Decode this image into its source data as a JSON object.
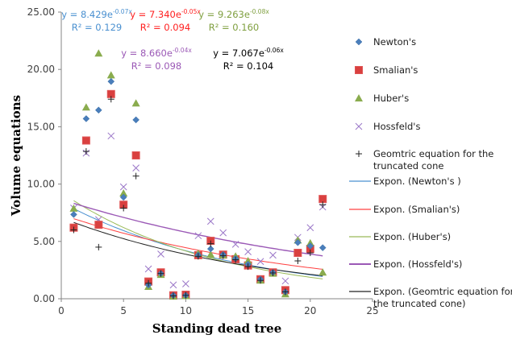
{
  "chart_data": {
    "type": "scatter",
    "title": "",
    "xlabel": "Standing dead tree",
    "ylabel": "Volume equations",
    "xlim": [
      0,
      25
    ],
    "ylim": [
      0,
      25
    ],
    "x_ticks": [
      "0",
      "5",
      "10",
      "15",
      "20",
      "25"
    ],
    "y_ticks": [
      "0.00",
      "5.00",
      "10.00",
      "15.00",
      "20.00",
      "25.00"
    ],
    "grid": false,
    "legend_position": "right",
    "x": [
      1,
      2,
      3,
      4,
      5,
      6,
      7,
      8,
      9,
      10,
      11,
      12,
      13,
      14,
      15,
      16,
      17,
      18,
      19,
      20,
      21
    ],
    "series": [
      {
        "name": "Newton's",
        "marker": "diamond",
        "color": "#4a7ebb",
        "values": [
          7.35,
          15.7,
          16.45,
          18.95,
          8.85,
          15.6,
          1.2,
          2.2,
          0.3,
          0.3,
          3.8,
          4.35,
          3.85,
          3.5,
          3.0,
          1.7,
          2.3,
          0.6,
          4.9,
          4.6,
          4.45
        ]
      },
      {
        "name": "Smalian's",
        "marker": "square",
        "color": "#d9403f",
        "values": [
          6.2,
          13.8,
          6.45,
          17.85,
          8.2,
          12.5,
          1.5,
          2.3,
          0.3,
          0.35,
          3.8,
          5.05,
          3.85,
          3.45,
          2.9,
          1.7,
          2.3,
          0.75,
          4.0,
          4.35,
          8.7
        ]
      },
      {
        "name": "Huber's",
        "marker": "triangle",
        "color": "#8aac4e",
        "values": [
          7.87,
          16.7,
          21.4,
          19.5,
          9.2,
          17.05,
          1.05,
          2.1,
          0.2,
          0.25,
          3.95,
          3.85,
          3.8,
          3.7,
          3.3,
          1.6,
          2.2,
          0.4,
          5.1,
          4.85,
          2.3
        ]
      },
      {
        "name": "Hossfeld's",
        "marker": "x",
        "color": "#9b77c8",
        "values": [
          7.9,
          12.7,
          6.9,
          14.2,
          9.75,
          11.4,
          2.6,
          3.9,
          1.2,
          1.3,
          5.5,
          6.75,
          5.75,
          4.75,
          4.1,
          3.25,
          3.8,
          1.55,
          5.35,
          6.2,
          8.0
        ]
      },
      {
        "name": "Geomtric equation for the truncated cone",
        "marker": "plus",
        "color": "#222222",
        "values": [
          6.0,
          12.85,
          4.5,
          17.4,
          7.9,
          10.7,
          1.35,
          2.2,
          0.25,
          0.3,
          3.7,
          4.8,
          3.75,
          3.4,
          2.8,
          1.6,
          2.25,
          0.6,
          3.3,
          4.0,
          8.2
        ]
      }
    ],
    "trendlines": [
      {
        "name": "Expon. (Newton's )",
        "color": "#4a90d0",
        "a": 8.429,
        "b": -0.07,
        "equation": "y = 8.429e",
        "exponent": "-0.07x",
        "r2": "R² = 0.129"
      },
      {
        "name": "Expon. (Smalian's)",
        "color": "#ff4040",
        "a": 7.34,
        "b": -0.05,
        "equation": "y = 7.340e",
        "exponent": "-0.05x",
        "r2": "R² = 0.094"
      },
      {
        "name": "Expon. (Huber's)",
        "color": "#9bbb59",
        "a": 9.263,
        "b": -0.08,
        "equation": "y = 9.263e",
        "exponent": "-0.08x",
        "r2": "R² = 0.160"
      },
      {
        "name": "Expon. (Hossfeld's)",
        "color": "#9b59b6",
        "a": 8.66,
        "b": -0.04,
        "equation": "y = 8.660e",
        "exponent": "-0.04x",
        "r2": "R² = 0.098"
      },
      {
        "name": "Expon. (Geomtric equation for the truncated cone)",
        "color": "#202020",
        "a": 7.067,
        "b": -0.06,
        "equation": "y = 7.067e",
        "exponent": "-0.06x",
        "r2": "R² = 0.104"
      }
    ],
    "trend_x_range": [
      1,
      21
    ]
  }
}
